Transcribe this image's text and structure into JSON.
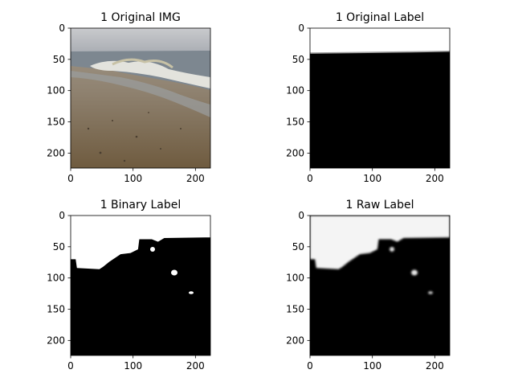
{
  "figure": {
    "background": "#ffffff"
  },
  "chart_data": [
    {
      "type": "image",
      "title": "1 Original IMG",
      "xlim": [
        0,
        224
      ],
      "ylim": [
        224,
        0
      ],
      "x_ticks": [
        0,
        100,
        200
      ],
      "y_ticks": [
        0,
        50,
        100,
        150,
        200
      ],
      "content": "beach photo: grey sky, sea with breaking wave, wet sand and pebbles"
    },
    {
      "type": "image",
      "title": "1 Original Label",
      "xlim": [
        0,
        224
      ],
      "ylim": [
        224,
        0
      ],
      "x_ticks": [
        0,
        100,
        200
      ],
      "y_ticks": [
        0,
        50,
        100,
        150,
        200
      ],
      "colormap": "gray",
      "boundary_polyline": [
        [
          0,
          40
        ],
        [
          80,
          39
        ],
        [
          160,
          38
        ],
        [
          224,
          37
        ]
      ]
    },
    {
      "type": "image",
      "title": "1 Binary Label",
      "xlim": [
        0,
        224
      ],
      "ylim": [
        224,
        0
      ],
      "x_ticks": [
        0,
        100,
        200
      ],
      "y_ticks": [
        0,
        50,
        100,
        150,
        200
      ],
      "colormap": "gray",
      "mask_boundary": [
        [
          0,
          70
        ],
        [
          8,
          70
        ],
        [
          10,
          84
        ],
        [
          46,
          86
        ],
        [
          52,
          82
        ],
        [
          62,
          74
        ],
        [
          80,
          62
        ],
        [
          96,
          60
        ],
        [
          108,
          54
        ],
        [
          110,
          38
        ],
        [
          130,
          38
        ],
        [
          140,
          42
        ],
        [
          150,
          36
        ],
        [
          224,
          35
        ]
      ]
    },
    {
      "type": "image",
      "title": "1 Raw Label",
      "xlim": [
        0,
        224
      ],
      "ylim": [
        224,
        0
      ],
      "x_ticks": [
        0,
        100,
        200
      ],
      "y_ticks": [
        0,
        50,
        100,
        150,
        200
      ],
      "colormap": "gray",
      "mask_boundary": [
        [
          0,
          70
        ],
        [
          8,
          70
        ],
        [
          10,
          84
        ],
        [
          46,
          86
        ],
        [
          52,
          82
        ],
        [
          62,
          74
        ],
        [
          80,
          62
        ],
        [
          96,
          60
        ],
        [
          108,
          54
        ],
        [
          110,
          38
        ],
        [
          130,
          38
        ],
        [
          140,
          42
        ],
        [
          150,
          36
        ],
        [
          224,
          35
        ]
      ]
    }
  ]
}
